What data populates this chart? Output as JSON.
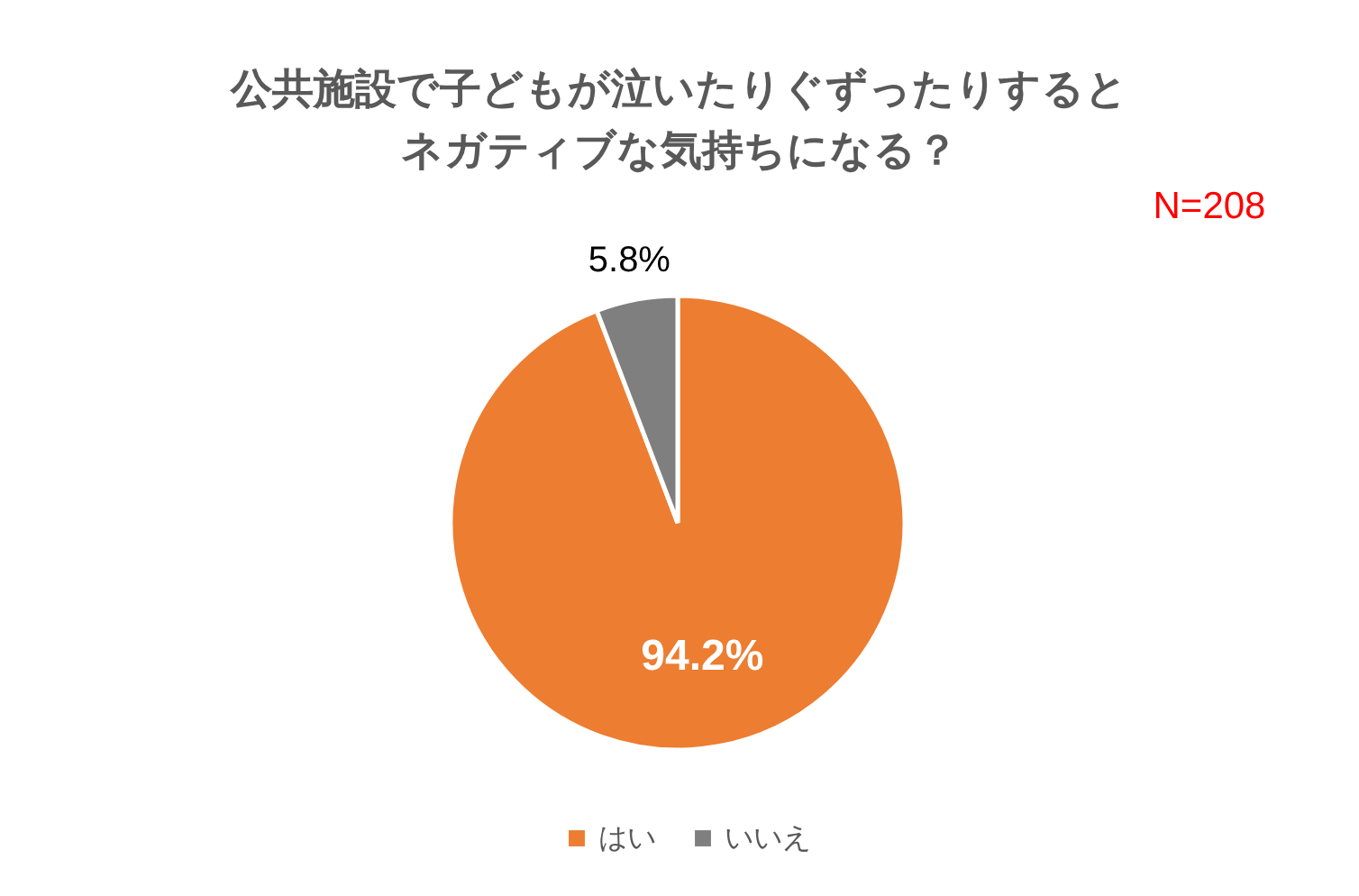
{
  "chart_data": {
    "type": "pie",
    "title": "公共施設で子どもが泣いたりぐずったりするとネガティブな気持ちになる？",
    "annotations": [
      "N=208"
    ],
    "categories": [
      "はい",
      "いいえ"
    ],
    "values": [
      94.2,
      5.8
    ],
    "colors": [
      "#ed7d31",
      "#7f7f7f"
    ],
    "value_labels": [
      "94.2%",
      "5.8%"
    ],
    "legend": "bottom"
  }
}
